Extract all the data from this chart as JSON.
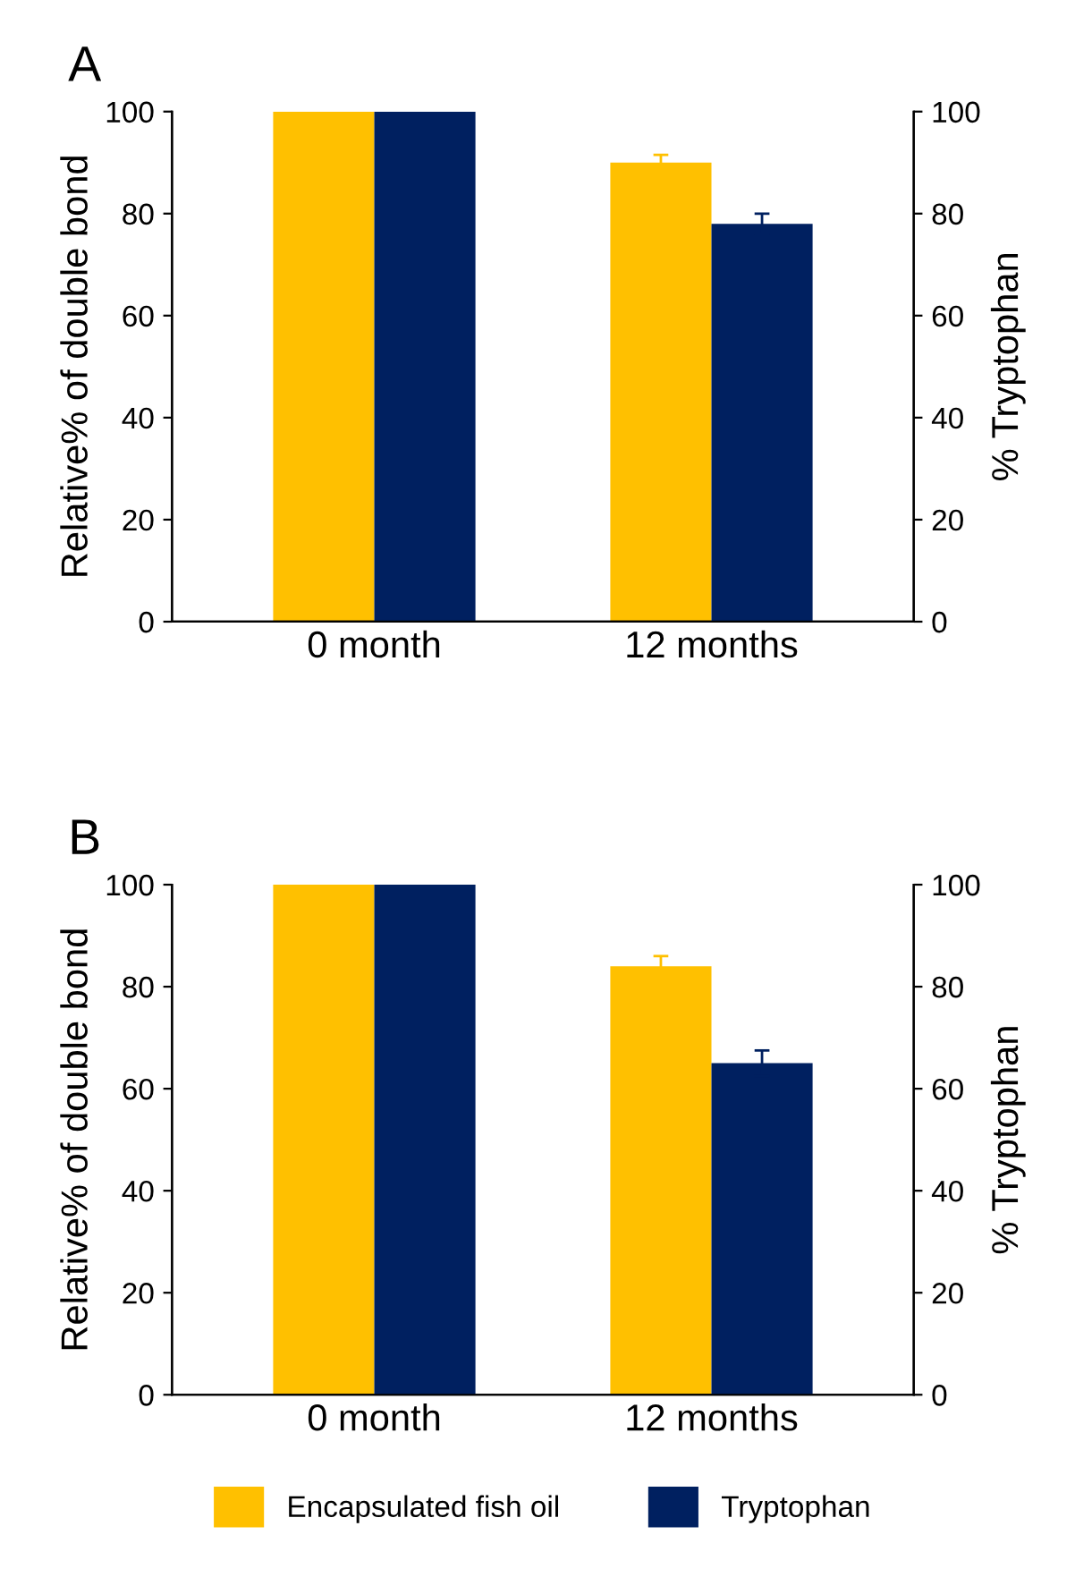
{
  "chart_data": [
    {
      "type": "bar",
      "annotations": [
        "A"
      ],
      "categories": [
        "0 month",
        "12 months"
      ],
      "ylabel": "Relative% of double bond",
      "y2label": "% Tryptophan",
      "ylim": [
        0,
        100
      ],
      "yticks": [
        0,
        20,
        40,
        60,
        80,
        100
      ],
      "y2lim": [
        0,
        100
      ],
      "y2ticks": [
        0,
        20,
        40,
        60,
        80,
        100
      ],
      "grid": false,
      "legend": false,
      "series": [
        {
          "color": "#ffc000",
          "values": [
            100,
            90
          ],
          "errors": [
            null,
            1.5
          ]
        },
        {
          "color": "#002060",
          "axis": "y2",
          "values": [
            100,
            78
          ],
          "errors": [
            null,
            2
          ]
        }
      ]
    },
    {
      "type": "bar",
      "annotations": [
        "B"
      ],
      "categories": [
        "0 month",
        "12 months"
      ],
      "ylabel": "Relative% of double bond",
      "y2label": "% Tryptophan",
      "ylim": [
        0,
        100
      ],
      "yticks": [
        0,
        20,
        40,
        60,
        80,
        100
      ],
      "y2lim": [
        0,
        100
      ],
      "y2ticks": [
        0,
        20,
        40,
        60,
        80,
        100
      ],
      "grid": false,
      "legend": "bottom",
      "series": [
        {
          "name": "Encapsulated fish oil",
          "color": "#ffc000",
          "values": [
            100,
            84
          ],
          "errors": [
            null,
            2
          ]
        },
        {
          "name": "Tryptophan",
          "color": "#002060",
          "axis": "y2",
          "values": [
            100,
            65
          ],
          "errors": [
            null,
            2.5
          ]
        }
      ]
    }
  ]
}
